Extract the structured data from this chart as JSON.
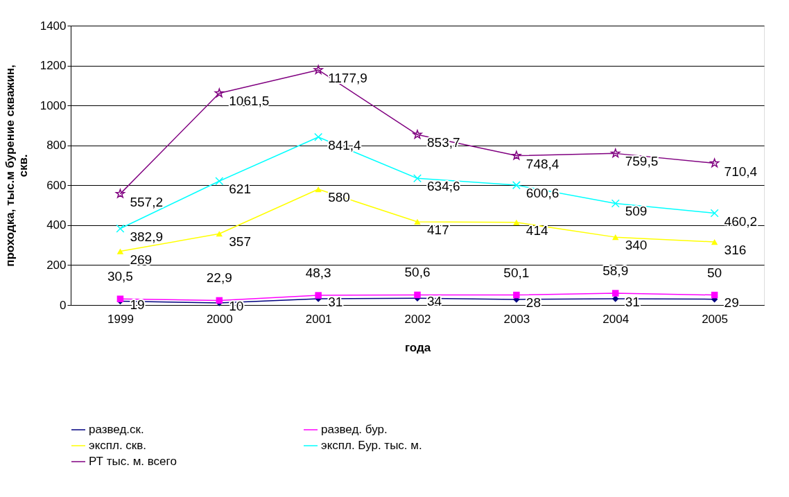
{
  "chart_data": {
    "type": "line",
    "xlabel": "года",
    "ylabel": "проходка, тыс.м бурение скважин, скв.",
    "categories": [
      "1999",
      "2000",
      "2001",
      "2002",
      "2003",
      "2004",
      "2005"
    ],
    "ylim": [
      0,
      1400
    ],
    "yticks": [
      0,
      200,
      400,
      600,
      800,
      1000,
      1200,
      1400
    ],
    "grid": "y",
    "legend": "bottom",
    "series": [
      {
        "name": "развед.ск.",
        "color": "#000080",
        "marker": "diamond",
        "values": [
          19,
          10,
          31,
          34,
          28,
          31,
          29
        ],
        "value_labels": [
          "19",
          "10",
          "31",
          "34",
          "28",
          "31",
          "29"
        ]
      },
      {
        "name": "развед. бур.",
        "color": "#ff00ff",
        "marker": "square",
        "values": [
          30.5,
          22.9,
          48.3,
          50.6,
          50.1,
          58.9,
          50
        ],
        "value_labels": [
          "30,5",
          "22,9",
          "48,3",
          "50,6",
          "50,1",
          "58,9",
          "50"
        ]
      },
      {
        "name": "экспл. скв.",
        "color": "#ffff00",
        "marker": "triangle",
        "values": [
          269,
          357,
          580,
          417,
          414,
          340,
          316
        ],
        "value_labels": [
          "269",
          "357",
          "580",
          "417",
          "414",
          "340",
          "316"
        ]
      },
      {
        "name": "экспл. Бур. тыс. м.",
        "color": "#00ffff",
        "marker": "cross",
        "values": [
          382.9,
          621,
          841.4,
          634.6,
          600.6,
          509,
          460.2
        ],
        "value_labels": [
          "382,9",
          "621",
          "841,4",
          "634,6",
          "600,6",
          "509",
          "460,2"
        ]
      },
      {
        "name": "РТ тыс. м. всего",
        "color": "#800080",
        "marker": "star",
        "values": [
          557.2,
          1061.5,
          1177.9,
          853.7,
          748.4,
          759.5,
          710.4
        ],
        "value_labels": [
          "557,2",
          "1061,5",
          "1177,9",
          "853,7",
          "748,4",
          "759,5",
          "710,4"
        ]
      }
    ]
  }
}
